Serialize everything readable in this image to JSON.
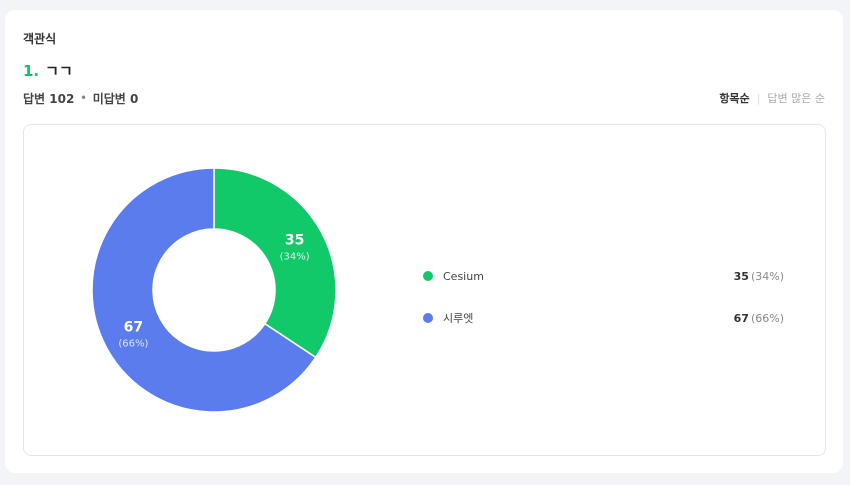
{
  "section": {
    "label": "객관식"
  },
  "question": {
    "number": "1.",
    "title": "ㄱㄱ"
  },
  "stats": {
    "answered": "답변 102",
    "separator": "•",
    "unanswered": "미답변 0"
  },
  "sort": {
    "active": "항목순",
    "divider": "|",
    "inactive": "답변 많은 순"
  },
  "chart_data": {
    "type": "pie",
    "style": "donut",
    "categories": [
      "Cesium",
      "시루엣"
    ],
    "values": [
      35,
      67
    ],
    "percent_labels": [
      "(34%)",
      "(66%)"
    ],
    "colors": [
      "#12c96a",
      "#5b7ced"
    ],
    "title": ""
  }
}
